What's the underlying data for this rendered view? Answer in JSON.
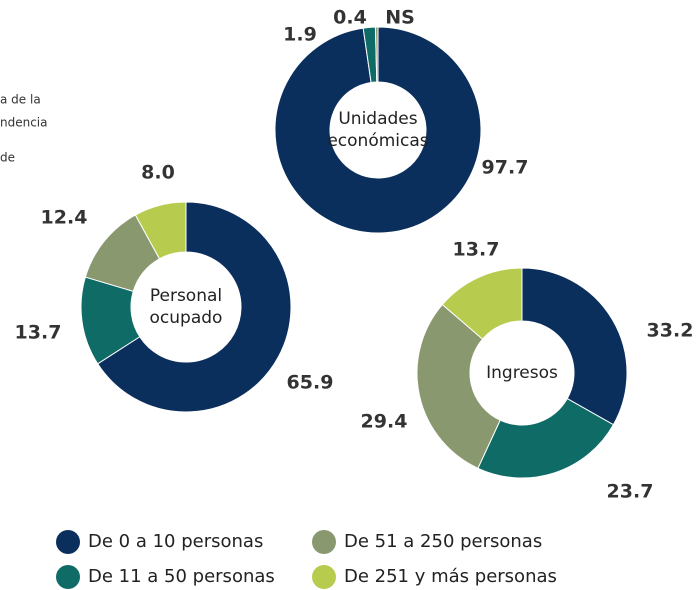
{
  "fragments": [
    "a de la",
    "ndencia",
    "de"
  ],
  "legend": [
    {
      "name": "De 0 a 10 personas",
      "color": "#0b2f5c"
    },
    {
      "name": "De 11 a 50 personas",
      "color": "#0f6b66"
    },
    {
      "name": "De 51 a 250 personas",
      "color": "#8a9870"
    },
    {
      "name": "De 251 y más personas",
      "color": "#b7cc4e"
    }
  ],
  "chart_data": [
    {
      "type": "pie",
      "title": [
        "Unidades",
        "económicas"
      ],
      "values": [
        97.7,
        1.9,
        0.4,
        null
      ],
      "value_labels": [
        null,
        null,
        null,
        "NS"
      ]
    },
    {
      "type": "pie",
      "title": [
        "Personal",
        "ocupado"
      ],
      "values": [
        65.9,
        13.7,
        12.4,
        8.0
      ],
      "value_labels": [
        null,
        null,
        null,
        "8.0"
      ]
    },
    {
      "type": "pie",
      "title": [
        "Ingresos"
      ],
      "values": [
        33.2,
        23.7,
        29.4,
        13.7
      ]
    }
  ]
}
